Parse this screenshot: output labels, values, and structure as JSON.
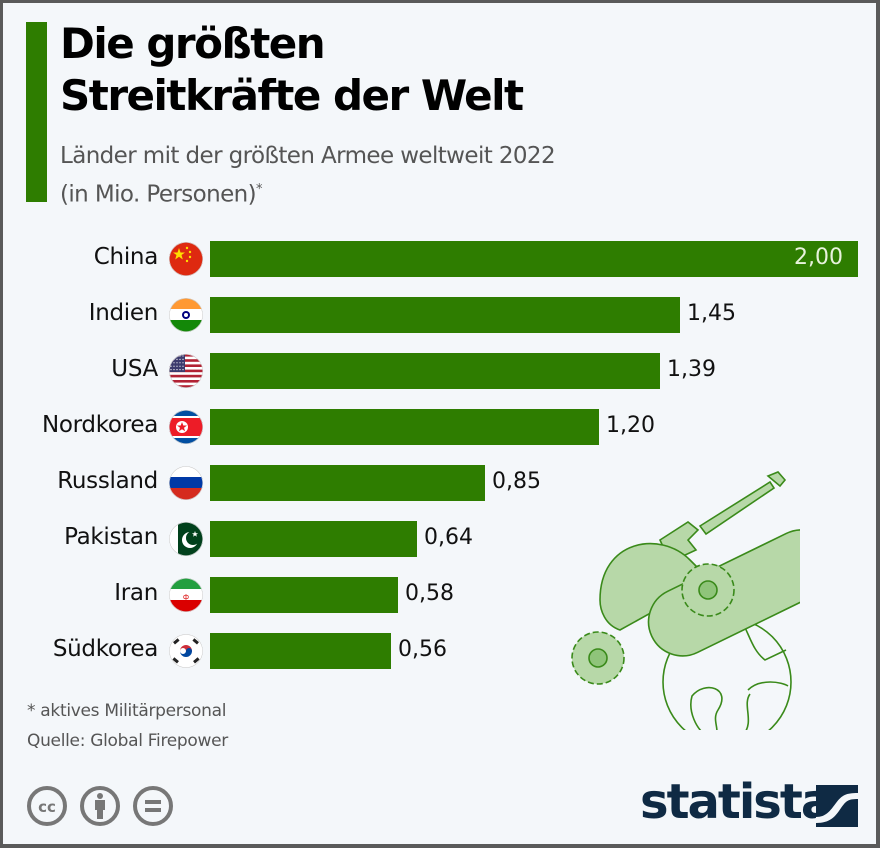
{
  "header": {
    "title_line1": "Die größten",
    "title_line2": "Streitkräfte der Welt",
    "subtitle_line1": "Länder mit der größten Armee weltweit 2022",
    "subtitle_line2": "(in Mio. Personen)",
    "subtitle_marker": "*"
  },
  "colors": {
    "bar": "#2e7d00",
    "accent": "#2e7d00",
    "logo": "#0f2a44"
  },
  "chart_data": {
    "type": "bar",
    "orientation": "horizontal",
    "title": "Die größten Streitkräfte der Welt",
    "subtitle": "Länder mit der größten Armee weltweit 2022 (in Mio. Personen)*",
    "xlabel": "",
    "ylabel": "",
    "xlim": [
      0,
      2.0
    ],
    "grid": false,
    "categories": [
      "China",
      "Indien",
      "USA",
      "Nordkorea",
      "Russland",
      "Pakistan",
      "Iran",
      "Südkorea"
    ],
    "values": [
      2.0,
      1.45,
      1.39,
      1.2,
      0.85,
      0.64,
      0.58,
      0.56
    ],
    "value_labels": [
      "2,00",
      "1,45",
      "1,39",
      "1,20",
      "0,85",
      "0,64",
      "0,58",
      "0,56"
    ],
    "flags": [
      "china-flag-icon",
      "india-flag-icon",
      "usa-flag-icon",
      "north-korea-flag-icon",
      "russia-flag-icon",
      "pakistan-flag-icon",
      "iran-flag-icon",
      "south-korea-flag-icon"
    ]
  },
  "footer": {
    "note": "* aktives Militärpersonal",
    "source": "Quelle: Global Firepower",
    "license_icons": [
      "cc-icon",
      "attribution-icon",
      "no-derivatives-icon"
    ],
    "brand": "statista"
  }
}
